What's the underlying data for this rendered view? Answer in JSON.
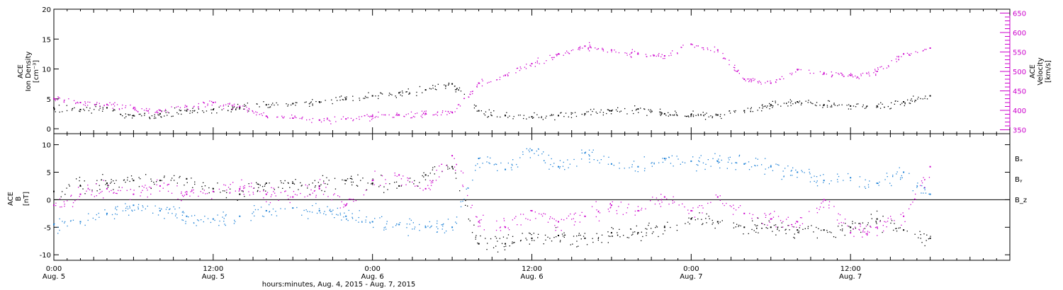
{
  "chart_data": [
    {
      "type": "scatter",
      "panel": "ion-density-velocity",
      "ylabel_lines": [
        "ACE",
        "Ion Density",
        "[cm⁻³]"
      ],
      "ylim": [
        0,
        20
      ],
      "yticks": [
        0,
        5,
        10,
        15,
        20
      ],
      "right_axis": {
        "label_lines": [
          "ACE",
          "Velocity",
          "[km/s]"
        ],
        "ylim": [
          340,
          660
        ],
        "ticks": [
          350,
          400,
          450,
          500,
          550,
          600,
          650
        ],
        "color": "#cc00cc"
      },
      "series": [
        {
          "color": "#000000",
          "axis": "left",
          "x": [
            0,
            2,
            4,
            6,
            8,
            10,
            12,
            14,
            16,
            18,
            20,
            22,
            24,
            26,
            28,
            30,
            32,
            34,
            36,
            38,
            40,
            42,
            44,
            46,
            48,
            50,
            52,
            54,
            56,
            58,
            60,
            62,
            64,
            66
          ],
          "y": [
            3.5,
            3.2,
            3.5,
            2.2,
            2.5,
            3.0,
            3.2,
            3.5,
            4.0,
            4.2,
            4.5,
            5.0,
            5.5,
            6.0,
            6.5,
            7.5,
            3.0,
            2.2,
            2.0,
            2.2,
            2.5,
            3.0,
            3.3,
            2.5,
            2.3,
            2.3,
            3.0,
            4.0,
            4.5,
            4.0,
            3.8,
            3.8,
            4.5,
            5.5
          ]
        },
        {
          "color": "#cc00cc",
          "axis": "right",
          "x": [
            0,
            2,
            4,
            6,
            8,
            10,
            12,
            14,
            16,
            18,
            20,
            22,
            24,
            26,
            28,
            30,
            32,
            34,
            36,
            38,
            40,
            42,
            44,
            46,
            48,
            50,
            52,
            54,
            56,
            58,
            60,
            62,
            64,
            66
          ],
          "y": [
            430,
            420,
            415,
            405,
            400,
            410,
            420,
            410,
            385,
            380,
            375,
            378,
            385,
            388,
            392,
            395,
            470,
            490,
            520,
            545,
            565,
            555,
            545,
            540,
            570,
            555,
            480,
            470,
            505,
            495,
            490,
            500,
            545,
            560
          ]
        }
      ]
    },
    {
      "type": "scatter",
      "panel": "magnetic-field",
      "ylabel_lines": [
        "ACE",
        "B",
        "[nT]"
      ],
      "ylim": [
        -11,
        12
      ],
      "yticks": [
        -10,
        -5,
        0,
        5,
        10
      ],
      "legend": {
        "placement": "right",
        "entries": [
          {
            "label": "Bₓ",
            "color": "#000000"
          },
          {
            "label": "Bᵧ",
            "color": "#1a7fd6"
          },
          {
            "label": "B_z",
            "color": "#cc00cc"
          }
        ]
      },
      "series": [
        {
          "name": "Bₓ",
          "color": "#000000",
          "x": [
            0,
            2,
            4,
            6,
            8,
            10,
            12,
            14,
            16,
            18,
            20,
            22,
            24,
            26,
            28,
            30,
            32,
            34,
            36,
            38,
            40,
            42,
            44,
            46,
            48,
            50,
            52,
            54,
            56,
            58,
            60,
            62,
            64,
            66
          ],
          "y": [
            1.5,
            2.5,
            3.0,
            3.5,
            3.5,
            3.8,
            2.0,
            1.0,
            3.0,
            3.0,
            2.5,
            3.5,
            3.0,
            2.5,
            4.5,
            6.0,
            -8.0,
            -8.0,
            -7.0,
            -6.5,
            -7.0,
            -6.0,
            -6.0,
            -5.0,
            -3.5,
            -4.0,
            -5.0,
            -5.0,
            -5.5,
            -5.5,
            -5.0,
            -3.5,
            -5.5,
            -7.0
          ]
        },
        {
          "name": "Bᵧ",
          "color": "#1a7fd6",
          "x": [
            0,
            2,
            4,
            6,
            8,
            10,
            12,
            14,
            16,
            18,
            20,
            22,
            24,
            26,
            28,
            30,
            32,
            34,
            36,
            38,
            40,
            42,
            44,
            46,
            48,
            50,
            52,
            54,
            56,
            58,
            60,
            62,
            64,
            66
          ],
          "y": [
            -4.5,
            -4.0,
            -2.5,
            -1.0,
            -2.0,
            -3.0,
            -3.5,
            -3.0,
            -2.0,
            -1.5,
            -2.0,
            -3.0,
            -4.0,
            -4.5,
            -5.0,
            -5.0,
            7.5,
            5.5,
            9.0,
            6.0,
            8.5,
            6.5,
            6.0,
            7.5,
            7.0,
            7.0,
            6.5,
            6.0,
            5.0,
            3.5,
            4.0,
            3.0,
            5.0,
            1.0
          ]
        },
        {
          "name": "B_z",
          "color": "#cc00cc",
          "x": [
            0,
            2,
            4,
            6,
            8,
            10,
            12,
            14,
            16,
            18,
            20,
            22,
            24,
            26,
            28,
            30,
            32,
            34,
            36,
            38,
            40,
            42,
            44,
            46,
            48,
            50,
            52,
            54,
            56,
            58,
            60,
            62,
            64,
            66
          ],
          "y": [
            -1.0,
            1.0,
            2.0,
            1.0,
            2.5,
            1.0,
            1.5,
            2.0,
            1.0,
            0.5,
            2.0,
            -1.0,
            3.5,
            4.5,
            2.0,
            8.0,
            -4.0,
            -5.0,
            -2.0,
            -4.0,
            -3.0,
            -1.0,
            -2.0,
            0.5,
            -2.0,
            0.5,
            -2.5,
            -3.5,
            -4.0,
            0.0,
            -6.0,
            -5.0,
            -3.0,
            6.0
          ]
        }
      ]
    }
  ],
  "x_axis": {
    "range_hours": [
      0,
      72
    ],
    "ticks": [
      {
        "hour": 0,
        "time": "0:00",
        "date": "Aug. 5"
      },
      {
        "hour": 12,
        "time": "12:00",
        "date": "Aug. 5"
      },
      {
        "hour": 24,
        "time": "0:00",
        "date": "Aug. 6"
      },
      {
        "hour": 36,
        "time": "12:00",
        "date": "Aug. 6"
      },
      {
        "hour": 48,
        "time": "0:00",
        "date": "Aug. 7"
      },
      {
        "hour": 60,
        "time": "12:00",
        "date": "Aug. 7"
      }
    ],
    "label": "hours:minutes, Aug.  4, 2015 - Aug.  7, 2015"
  }
}
